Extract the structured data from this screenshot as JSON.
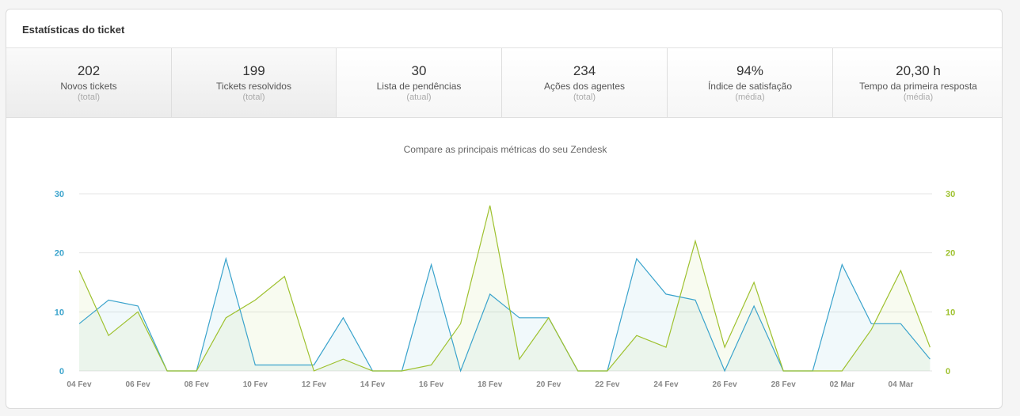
{
  "panel": {
    "title": "Estatísticas do ticket"
  },
  "stats": [
    {
      "value": "202",
      "label": "Novos tickets",
      "sub": "(total)"
    },
    {
      "value": "199",
      "label": "Tickets resolvidos",
      "sub": "(total)"
    },
    {
      "value": "30",
      "label": "Lista de pendências",
      "sub": "(atual)"
    },
    {
      "value": "234",
      "label": "Ações dos agentes",
      "sub": "(total)"
    },
    {
      "value": "94%",
      "label": "Índice de satisfação",
      "sub": "(média)"
    },
    {
      "value": "20,30 h",
      "label": "Tempo da primeira resposta",
      "sub": "(média)"
    }
  ],
  "colors": {
    "blue": "#3aa3cc",
    "green": "#9ec12e",
    "grid": "#e6e6e6"
  },
  "chart_data": {
    "type": "area",
    "title": "Compare as principais métricas do seu Zendesk",
    "x": [
      "04 Fev",
      "05 Fev",
      "06 Fev",
      "07 Fev",
      "08 Fev",
      "09 Fev",
      "10 Fev",
      "11 Fev",
      "12 Fev",
      "13 Fev",
      "14 Fev",
      "15 Fev",
      "16 Fev",
      "17 Fev",
      "18 Fev",
      "19 Fev",
      "20 Fev",
      "21 Fev",
      "22 Fev",
      "23 Fev",
      "24 Fev",
      "25 Fev",
      "26 Fev",
      "27 Fev",
      "28 Fev",
      "01 Mar",
      "02 Mar",
      "03 Mar",
      "04 Mar",
      "05 Mar"
    ],
    "tick_labels": [
      "04 Fev",
      "06 Fev",
      "08 Fev",
      "10 Fev",
      "12 Fev",
      "14 Fev",
      "16 Fev",
      "18 Fev",
      "20 Fev",
      "22 Fev",
      "24 Fev",
      "26 Fev",
      "28 Fev",
      "02 Mar",
      "04 Mar"
    ],
    "y_ticks": [
      "0",
      "10",
      "20",
      "30"
    ],
    "ylim": [
      0,
      30
    ],
    "grid": true,
    "series": [
      {
        "color": "#3aa3cc",
        "axis": "left",
        "values": [
          8,
          12,
          11,
          0,
          0,
          19,
          1,
          1,
          1,
          9,
          0,
          0,
          18,
          0,
          13,
          9,
          9,
          0,
          0,
          19,
          13,
          12,
          0,
          11,
          0,
          0,
          18,
          8,
          8,
          2
        ]
      },
      {
        "color": "#9ec12e",
        "axis": "right",
        "values": [
          17,
          6,
          10,
          0,
          0,
          9,
          12,
          16,
          0,
          2,
          0,
          0,
          1,
          8,
          28,
          2,
          9,
          0,
          0,
          6,
          4,
          22,
          4,
          15,
          0,
          0,
          0,
          7,
          17,
          4
        ]
      }
    ]
  }
}
